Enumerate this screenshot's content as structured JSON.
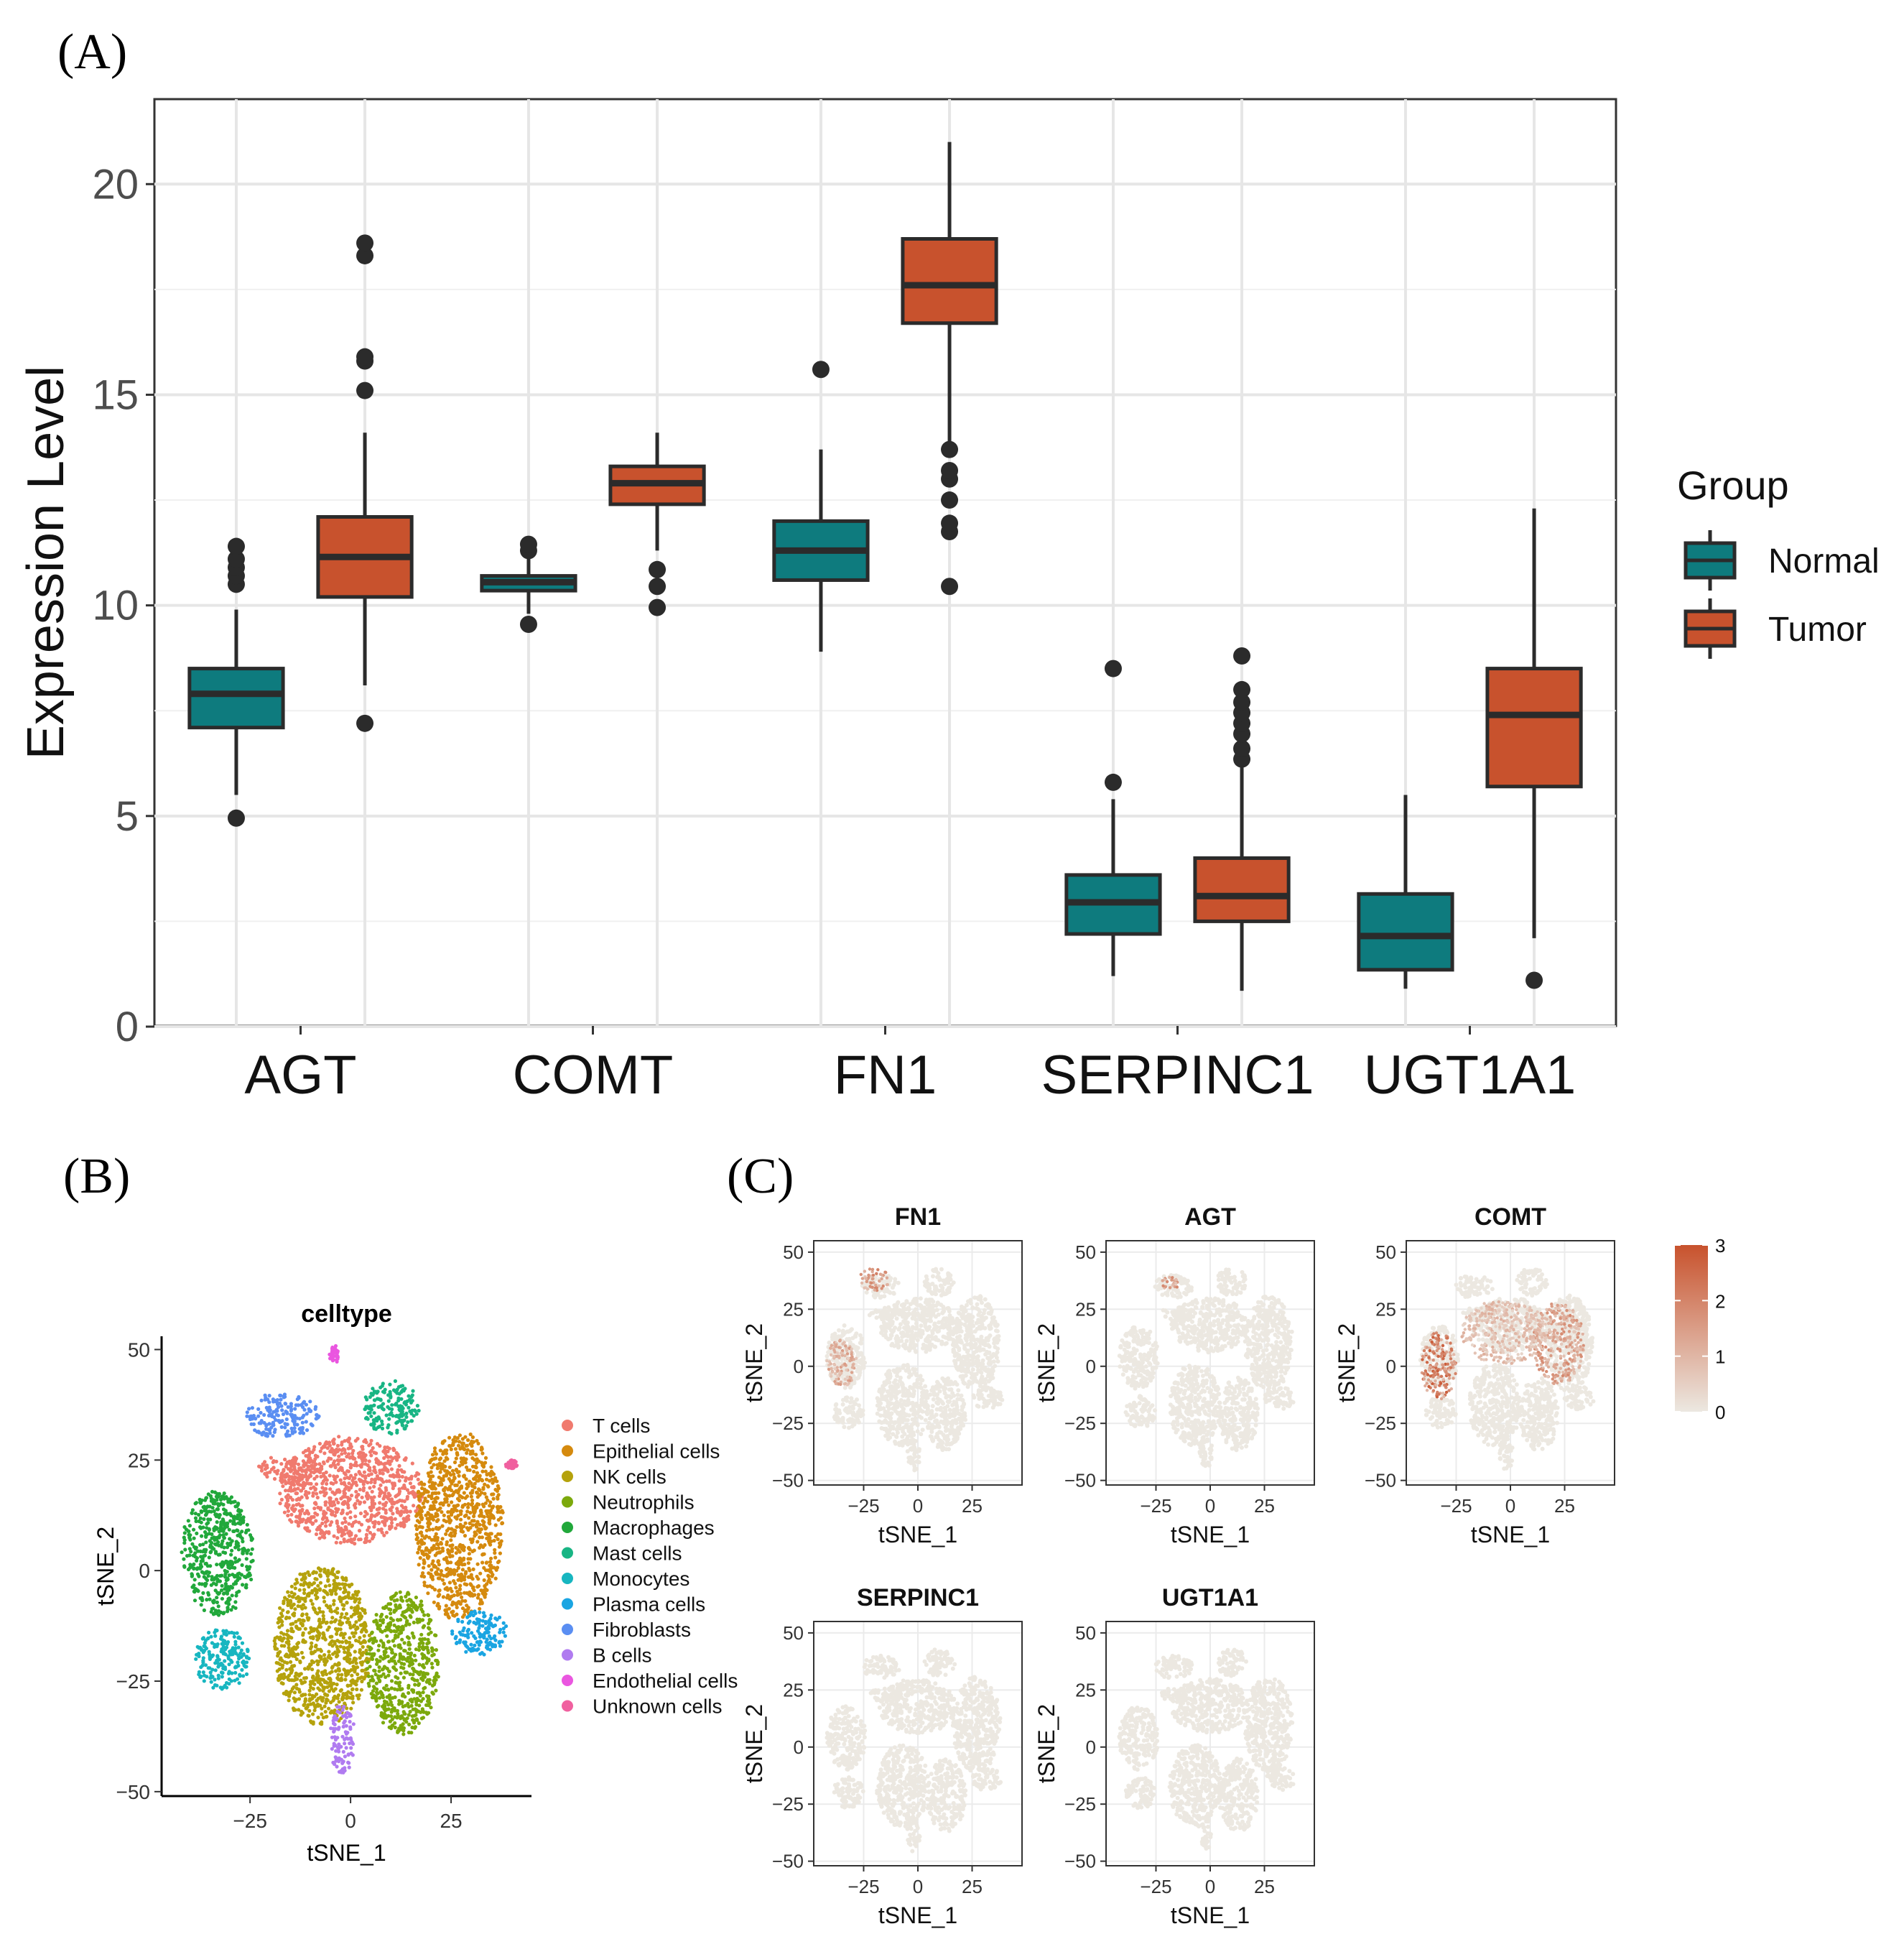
{
  "panels": {
    "a": "(A)",
    "b": "(B)",
    "c": "(C)"
  },
  "chart_data": [
    {
      "type": "boxplot",
      "panel": "(A)",
      "ylabel": "Expression Level",
      "xlabel": "",
      "ylim": [
        0,
        22
      ],
      "yticks": [
        0,
        5,
        10,
        15,
        20
      ],
      "categories": [
        "AGT",
        "COMT",
        "FN1",
        "SERPINC1",
        "UGT1A1"
      ],
      "legend": {
        "title": "Group",
        "placement": "right"
      },
      "series": [
        {
          "name": "Normal",
          "color": "#0e7b7e",
          "boxes": [
            {
              "min": 5.5,
              "q1": 7.1,
              "median": 7.9,
              "q3": 8.5,
              "max": 9.9,
              "outliers": [
                4.95,
                10.5,
                10.7,
                10.9,
                11.1,
                11.4
              ]
            },
            {
              "min": 9.8,
              "q1": 10.35,
              "median": 10.55,
              "q3": 10.7,
              "max": 11.2,
              "outliers": [
                9.55,
                11.3,
                11.45
              ]
            },
            {
              "min": 8.9,
              "q1": 10.6,
              "median": 11.3,
              "q3": 12.0,
              "max": 13.7,
              "outliers": [
                15.6
              ]
            },
            {
              "min": 1.2,
              "q1": 2.2,
              "median": 2.95,
              "q3": 3.6,
              "max": 5.4,
              "outliers": [
                5.8,
                8.5
              ]
            },
            {
              "min": 0.9,
              "q1": 1.35,
              "median": 2.15,
              "q3": 3.15,
              "max": 5.5,
              "outliers": []
            }
          ]
        },
        {
          "name": "Tumor",
          "color": "#c8522d",
          "boxes": [
            {
              "min": 8.1,
              "q1": 10.2,
              "median": 11.15,
              "q3": 12.1,
              "max": 14.1,
              "outliers": [
                7.2,
                15.1,
                15.8,
                15.9,
                18.3,
                18.6
              ]
            },
            {
              "min": 11.3,
              "q1": 12.4,
              "median": 12.9,
              "q3": 13.3,
              "max": 14.1,
              "outliers": [
                9.95,
                10.45,
                10.85
              ]
            },
            {
              "min": 13.9,
              "q1": 16.7,
              "median": 17.6,
              "q3": 18.7,
              "max": 21.0,
              "outliers": [
                10.45,
                11.75,
                11.95,
                12.5,
                13.0,
                13.2,
                13.7
              ]
            },
            {
              "min": 0.85,
              "q1": 2.5,
              "median": 3.1,
              "q3": 4.0,
              "max": 6.2,
              "outliers": [
                6.35,
                6.6,
                6.95,
                7.2,
                7.45,
                7.7,
                8.0,
                8.8
              ]
            },
            {
              "min": 2.1,
              "q1": 5.7,
              "median": 7.4,
              "q3": 8.5,
              "max": 12.3,
              "outliers": [
                1.1
              ]
            }
          ]
        }
      ]
    },
    {
      "type": "scatter",
      "panel": "(B)",
      "title": "celltype",
      "xlabel": "tSNE_1",
      "ylabel": "tSNE_2",
      "xlim": [
        -47,
        45
      ],
      "ylim": [
        -51,
        53
      ],
      "xticks": [
        -25,
        0,
        25
      ],
      "yticks": [
        -50,
        -25,
        0,
        25,
        50
      ],
      "legend_placement": "right",
      "legend": [
        {
          "label": "T cells",
          "color": "#f07a6e"
        },
        {
          "label": "Epithelial cells",
          "color": "#d58a0e"
        },
        {
          "label": "NK cells",
          "color": "#b5a20c"
        },
        {
          "label": "Neutrophils",
          "color": "#7ca90c"
        },
        {
          "label": "Macrophages",
          "color": "#21a83b"
        },
        {
          "label": "Mast cells",
          "color": "#18b584"
        },
        {
          "label": "Monocytes",
          "color": "#17b6c0"
        },
        {
          "label": "Plasma cells",
          "color": "#1aa5e2"
        },
        {
          "label": "Fibroblasts",
          "color": "#5a8ef2"
        },
        {
          "label": "B cells",
          "color": "#b07bf0"
        },
        {
          "label": "Endothelial cells",
          "color": "#ea56e0"
        },
        {
          "label": "Unknown cells",
          "color": "#f0609f"
        }
      ],
      "clusters": [
        {
          "type": "T cells",
          "cx": 0,
          "cy": 18,
          "rx": 18,
          "ry": 12
        },
        {
          "type": "T cells",
          "cx": -15,
          "cy": 23,
          "rx": 8,
          "ry": 3
        },
        {
          "type": "Epithelial cells",
          "cx": 27,
          "cy": 10,
          "rx": 11,
          "ry": 21
        },
        {
          "type": "NK cells",
          "cx": -7,
          "cy": -17,
          "rx": 12,
          "ry": 18
        },
        {
          "type": "Neutrophils",
          "cx": 13,
          "cy": -21,
          "rx": 9,
          "ry": 16
        },
        {
          "type": "Macrophages",
          "cx": -33,
          "cy": 4,
          "rx": 9,
          "ry": 14
        },
        {
          "type": "Mast cells",
          "cx": 10,
          "cy": 37,
          "rx": 7,
          "ry": 6
        },
        {
          "type": "Monocytes",
          "cx": -32,
          "cy": -20,
          "rx": 7,
          "ry": 7
        },
        {
          "type": "Plasma cells",
          "cx": 32,
          "cy": -14,
          "rx": 7,
          "ry": 5
        },
        {
          "type": "Fibroblasts",
          "cx": -17,
          "cy": 35,
          "rx": 9,
          "ry": 5
        },
        {
          "type": "B cells",
          "cx": -2,
          "cy": -38,
          "rx": 3,
          "ry": 8
        },
        {
          "type": "Endothelial cells",
          "cx": -4,
          "cy": 49,
          "rx": 1,
          "ry": 2
        },
        {
          "type": "Unknown cells",
          "cx": 40,
          "cy": 24,
          "rx": 1.5,
          "ry": 1
        }
      ]
    },
    {
      "type": "scatter",
      "panel": "(C)",
      "xlabel": "tSNE_1",
      "ylabel": "tSNE_2",
      "xlim": [
        -48,
        48
      ],
      "ylim": [
        -52,
        55
      ],
      "xticks": [
        -25,
        0,
        25
      ],
      "yticks": [
        -50,
        -25,
        0,
        25,
        50
      ],
      "colorbar": {
        "min": 0,
        "max": 3,
        "ticks": [
          "3",
          "2",
          "1",
          "0"
        ],
        "low": "#ece8e1",
        "high": "#c8522d"
      },
      "facets": [
        {
          "title": "FN1",
          "highlight": [
            {
              "cx": -20,
              "cy": 38,
              "rx": 7,
              "ry": 5,
              "level": 1.6
            },
            {
              "cx": -35,
              "cy": 2,
              "rx": 7,
              "ry": 11,
              "level": 1.2
            }
          ]
        },
        {
          "title": "AGT",
          "highlight": [
            {
              "cx": -18,
              "cy": 36,
              "rx": 5,
              "ry": 3,
              "level": 1.5
            }
          ]
        },
        {
          "title": "COMT",
          "highlight": [
            {
              "cx": -33,
              "cy": 0,
              "rx": 8,
              "ry": 15,
              "level": 2.2
            },
            {
              "cx": 22,
              "cy": 10,
              "rx": 12,
              "ry": 18,
              "level": 1.5
            },
            {
              "cx": -3,
              "cy": 15,
              "rx": 20,
              "ry": 14,
              "level": 0.9
            }
          ]
        },
        {
          "title": "SERPINC1",
          "highlight": []
        },
        {
          "title": "UGT1A1",
          "highlight": []
        }
      ]
    }
  ]
}
